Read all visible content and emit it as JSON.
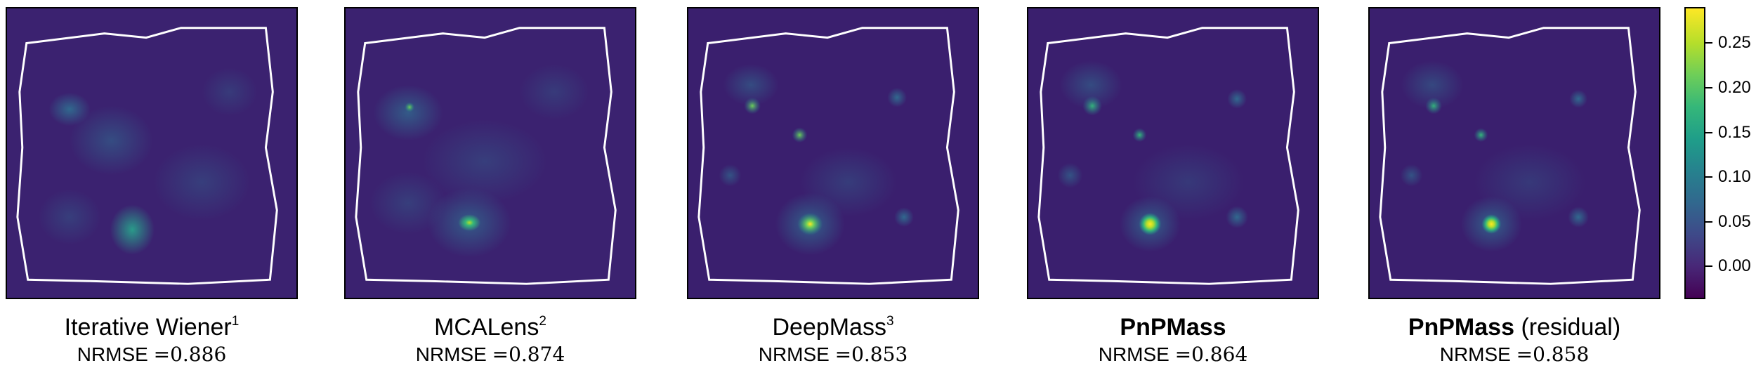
{
  "panels": [
    {
      "method_name": "Iterative Wiener",
      "reference_mark": "1",
      "method_qualifier": "",
      "metric_label": "NRMSE",
      "metric_equals": "=",
      "metric_value": "0.886"
    },
    {
      "method_name": "MCALens",
      "reference_mark": "2",
      "method_qualifier": "",
      "metric_label": "NRMSE",
      "metric_equals": "=",
      "metric_value": "0.874"
    },
    {
      "method_name": "DeepMass",
      "reference_mark": "3",
      "method_qualifier": "",
      "metric_label": "NRMSE",
      "metric_equals": "=",
      "metric_value": "0.853"
    },
    {
      "method_name": "PnPMass",
      "reference_mark": "",
      "method_qualifier": "",
      "metric_label": "NRMSE",
      "metric_equals": "=",
      "metric_value": "0.864"
    },
    {
      "method_name": "PnPMass",
      "reference_mark": "",
      "method_qualifier": "(residual)",
      "metric_label": "NRMSE",
      "metric_equals": "=",
      "metric_value": "0.858"
    }
  ],
  "colorbar": {
    "colormap": "viridis",
    "tick_labels": [
      "0.25",
      "0.20",
      "0.15",
      "0.10",
      "0.05",
      "0.00"
    ]
  },
  "colors": {
    "map_background": "#3b1d6b",
    "survey_outline": "#ffffff"
  }
}
